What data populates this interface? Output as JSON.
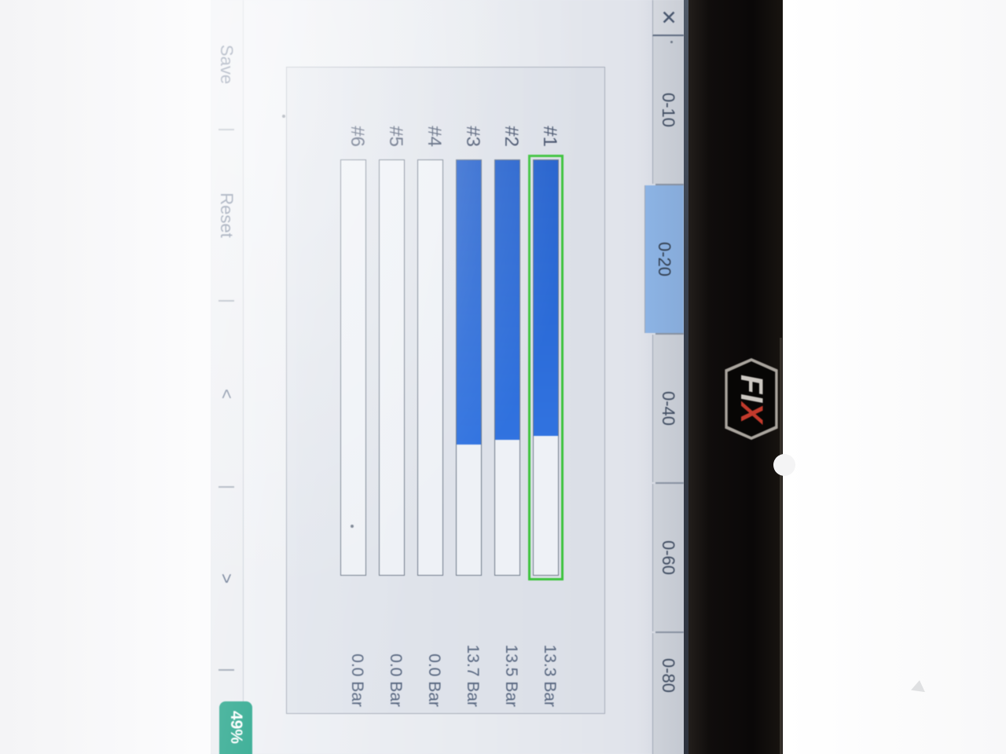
{
  "screen": {
    "close_label": "✕"
  },
  "tabs": {
    "items": [
      {
        "label": "0-10",
        "selected": false
      },
      {
        "label": "0-20",
        "selected": true
      },
      {
        "label": "0-40",
        "selected": false
      },
      {
        "label": "0-60",
        "selected": false
      },
      {
        "label": "0-80",
        "selected": false
      }
    ]
  },
  "chart_data": {
    "type": "bar",
    "orientation": "horizontal",
    "unit": "Bar",
    "xlim": [
      0,
      20
    ],
    "selected_range_tab": "0-20",
    "selected_category": "#1",
    "categories": [
      "#1",
      "#2",
      "#3",
      "#4",
      "#5",
      "#6"
    ],
    "values": [
      13.3,
      13.5,
      13.7,
      0.0,
      0.0,
      0.0
    ],
    "rows": [
      {
        "category": "#1",
        "value": 13.3,
        "value_label": "13.3 Bar",
        "selected": true
      },
      {
        "category": "#2",
        "value": 13.5,
        "value_label": "13.5 Bar",
        "selected": false
      },
      {
        "category": "#3",
        "value": 13.7,
        "value_label": "13.7 Bar",
        "selected": false
      },
      {
        "category": "#4",
        "value": 0.0,
        "value_label": "0.0 Bar",
        "selected": false
      },
      {
        "category": "#5",
        "value": 0.0,
        "value_label": "0.0 Bar",
        "selected": false
      },
      {
        "category": "#6",
        "value": 0.0,
        "value_label": "0.0 Bar",
        "selected": false
      }
    ]
  },
  "toolbar": {
    "save_label": "Save",
    "reset_label": "Reset",
    "prev_label": "<",
    "next_label": ">",
    "progress": "49%"
  },
  "device": {
    "logo_fi": "FI",
    "logo_x": "X"
  },
  "colors": {
    "bar-blue": "#3173e0",
    "bar-blue-dark": "#2461cd",
    "tab-blue": "#8db5e7",
    "sel-green": "#3cc33c",
    "badge-teal": "#2aa78d",
    "logo-red": "#c23a2c"
  }
}
